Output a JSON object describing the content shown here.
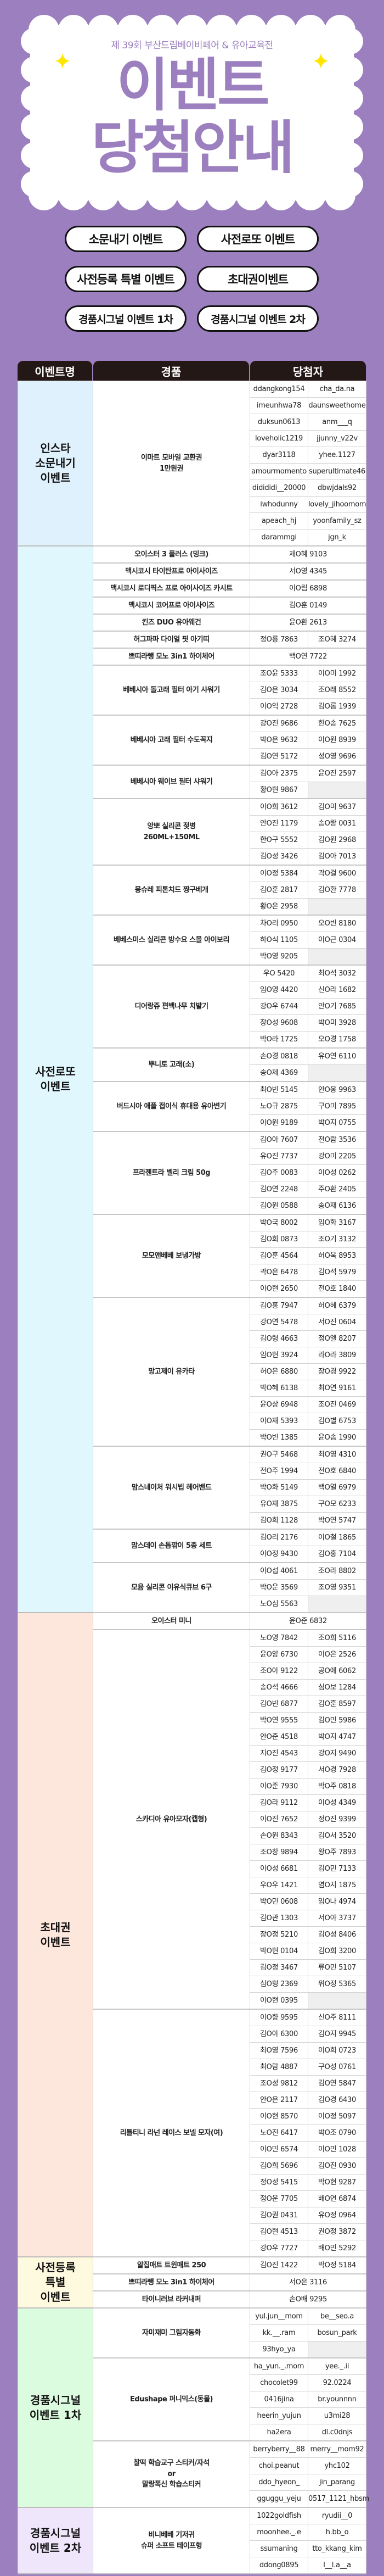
{
  "header": {
    "subtitle": "제 39회 부산드림베이비페어 & 유아교육전",
    "title_line1": "이벤트",
    "title_line2": "당첨안내"
  },
  "nav_buttons": [
    "소문내기 이벤트",
    "사전로또 이벤트",
    "사전등록 특별 이벤트",
    "초대권이벤트",
    "경품시그널 이벤트 1차",
    "경품시그널 이벤트 2차"
  ],
  "colors": {
    "background": "#9b7fbe",
    "table_header": "#231815",
    "accent_sparkle": "#ffe600"
  },
  "table": {
    "columns": [
      "이벤트명",
      "경품",
      "당첨자"
    ],
    "events": [
      {
        "name": "인스타\n소문내기\n이벤트",
        "color": "#dff1fd",
        "prizes": [
          {
            "name": "이마트 모바일 교환권\n1만원권",
            "winners": [
              "ddangkong154",
              "cha_da.na",
              "imeunhwa78",
              "daunsweethome",
              "duksun0613",
              "anm___q",
              "loveholic1219",
              "jjunny_v22v",
              "dyar3118",
              "yhee.1127",
              "amourmomento",
              "superultimate46",
              "didididi__20000",
              "dbwjdals92",
              "iwhodunny",
              "lovely_jihoomom",
              "apeach_hj",
              "yoonfamily_sz",
              "darammgi",
              "jgn_k"
            ]
          }
        ]
      },
      {
        "name": "사전로또\n이벤트",
        "color": "#e0f8fd",
        "prizes": [
          {
            "name": "오이스터 3 플러스 (밍크)",
            "winners": [
              "제O혜 9103"
            ]
          },
          {
            "name": "맥시코시 타이탄프로 아이사이즈",
            "winners": [
              "서O영 4345"
            ]
          },
          {
            "name": "맥시코시 로디픽스 프로 아이사이즈 카시트",
            "winners": [
              "이O림 6898"
            ]
          },
          {
            "name": "맥시코시 코어프로 아이사이즈",
            "winners": [
              "김O훈 0149"
            ]
          },
          {
            "name": "킨즈 DUO 유아웨건",
            "winners": [
              "윤O환 2613"
            ]
          },
          {
            "name": "허그파파 다이얼 핏 아기띠",
            "winners": [
              "정O룡 7863",
              "조O혜 3274"
            ]
          },
          {
            "name": "쁘띠라뺑 모노 3in1 하이체어",
            "winners": [
              "백O연 7722"
            ]
          },
          {
            "name": "베베시아 돌고래 필터 아기 샤워기",
            "winners": [
              "조O윤 5333",
              "이O미 1992",
              "김O은 3034",
              "조O래 8552",
              "이O익 2728",
              "김O롬 1939"
            ]
          },
          {
            "name": "베베시아 고래 필터 수도꼭지",
            "winners": [
              "강O진 9686",
              "한O송 7625",
              "박O은 9632",
              "이O원 8939",
              "김O연 5172",
              "성O영 9696"
            ]
          },
          {
            "name": "베베시아 웨이브 필터 샤워기",
            "winners": [
              "김O아 2375",
              "윤O진 2597",
              "황O현 9867"
            ]
          },
          {
            "name": "앙뽀 실리콘 젖병\n260ML+150ML",
            "winners": [
              "이O희 3612",
              "김O미 9637",
              "안O진 1179",
              "송O랑 0031",
              "한O구 5552",
              "김O원 2968",
              "김O성 3426",
              "김O아 7013"
            ]
          },
          {
            "name": "몽슈레 피톤치드 짱구베개",
            "winners": [
              "이O정 5384",
              "곽O걸 9600",
              "김O훈 2817",
              "김O환 7778",
              "황O은 2958"
            ]
          },
          {
            "name": "베베스미스 실리콘 방수요 스몰 아이보리",
            "winners": [
              "차O리 0950",
              "오O빈 8180",
              "하O식 1105",
              "이O근 0304",
              "박O영 9205"
            ]
          },
          {
            "name": "디어랑쥬 편백나무 치발기",
            "winners": [
              "우O 5420",
              "최O석 3032",
              "임O영 4420",
              "신O라 1682",
              "강O우 6744",
              "안O기 7685",
              "장O성 9608",
              "박O미 3928",
              "박O라 1725",
              "오O경 1758"
            ]
          },
          {
            "name": "뿌니토 고래(소)",
            "winners": [
              "손O경 0818",
              "유O연 6110",
              "송O제 4369"
            ]
          },
          {
            "name": "버드시아 애플 접이식 휴대용 유아변기",
            "winners": [
              "최O빈 5145",
              "안O웅 9963",
              "노O규 2875",
              "구O미 7895",
              "이O원 9189",
              "박O지 0755"
            ]
          },
          {
            "name": "프라젠트라 벨리 크림 50g",
            "winners": [
              "김O아 7607",
              "전O람 3536",
              "유O진 7737",
              "강O미 2205",
              "김O주 0083",
              "이O성 0262",
              "김O연 2248",
              "주O환 2405",
              "김O원 0588",
              "송O재 6136"
            ]
          },
          {
            "name": "모모앤베베 보냉가방",
            "winners": [
              "박O국 8002",
              "임O화 3167",
              "김O희 0873",
              "조O기 3132",
              "김O훈 4564",
              "허O욱 8953",
              "곽O은 6478",
              "김O석 5979",
              "이O현 2650",
              "전O호 1840"
            ]
          },
          {
            "name": "망고제이 유카타",
            "winners": [
              "김O홍 7947",
              "허O혜 6379",
              "강O연 5478",
              "서O진 0604",
              "김O령 4663",
              "정O엘 8207",
              "임O현 3924",
              "라O라 3809",
              "허O은 6880",
              "장O경 9922",
              "박O혜 6138",
              "최O연 9161",
              "윤O상 6948",
              "조O진 0469",
              "이O재 5393",
              "김O별 6753",
              "박O빈 1385",
              "윤O솜 1990"
            ]
          },
          {
            "name": "맘스네이처 워시빕 헤어밴드",
            "winners": [
              "권O구 5468",
              "최O영 4310",
              "전O주 1994",
              "전O호 6840",
              "박O화 5149",
              "백O열 6979",
              "유O재 3875",
              "구O모 6233",
              "김O희 1128",
              "박O연 5747"
            ]
          },
          {
            "name": "맘스데이 손톱깎이 5종 세트",
            "winners": [
              "김O리 2176",
              "이O철 1865",
              "이O정 9430",
              "김O홍 7104"
            ]
          },
          {
            "name": "모윰 실리콘 이유식큐브 6구",
            "winners": [
              "이O섭 4061",
              "조O라 8802",
              "박O운 3569",
              "조O영 9351",
              "노O심 5563"
            ]
          }
        ]
      },
      {
        "name": "초대권\n이벤트",
        "color": "#fde6dc",
        "prizes": [
          {
            "name": "오이스터 미니",
            "winners": [
              "윤O준 6832"
            ]
          },
          {
            "name": "스카디아 유아모자(캡형)",
            "winners": [
              "노O영 7842",
              "조O희 5116",
              "윤O양 6730",
              "이O은 2526",
              "조O아 9122",
              "공O애 6062",
              "송O석 4666",
              "심O보 1284",
              "김O빈 6877",
              "김O훈 8597",
              "박O연 9555",
              "김O민 5986",
              "안O준 4518",
              "박O지 4747",
              "지O진 4543",
              "강O지 9490",
              "김O정 9177",
              "서O경 7928",
              "이O준 7930",
              "박O주 0818",
              "김O라 9112",
              "이O성 4349",
              "이O진 7652",
              "정O진 9399",
              "손O원 8343",
              "김O서 3520",
              "조O창 9894",
              "왕O주 7893",
              "이O성 6681",
              "김O민 7133",
              "우O우 1421",
              "염O지 1875",
              "박O민 0608",
              "임O나 4974",
              "김O관 1303",
              "서O아 3737",
              "장O정 5210",
              "김O성 8406",
              "박O현 0104",
              "김O희 3200",
              "김O정 3467",
              "류O민 5107",
              "심O형 2369",
              "위O정 5365",
              "이O현 0395"
            ]
          },
          {
            "name": "리틀티니 라넌 레이스 보넬 모자(여)",
            "winners": [
              "이O향 9595",
              "신O주 8111",
              "김O아 6300",
              "김O지 9945",
              "최O영 7596",
              "이O희 0723",
              "최O람 4887",
              "구O성 0761",
              "조O성 9812",
              "김O연 5847",
              "안O은 2117",
              "김O경 6430",
              "이O현 8570",
              "이O정 5097",
              "노O진 6417",
              "박O조 0790",
              "이O민 6574",
              "이O민 1028",
              "김O희 5696",
              "김O진 0930",
              "정O성 5415",
              "박O현 9287",
              "정O운 7705",
              "배O연 6874",
              "김O권 0431",
              "유O정 0964",
              "김O현 4513",
              "권O정 3872",
              "강O우 7727",
              "배O민 5292"
            ]
          }
        ]
      },
      {
        "name": "사전등록\n특별\n이벤트",
        "color": "#fefadf",
        "prizes": [
          {
            "name": "알집매트 트윈매트 250",
            "winners": [
              "김O진 1422",
              "박O정 5184"
            ]
          },
          {
            "name": "쁘띠라뺑 모노 3in1 하이체어",
            "winners": [
              "서O은 3116"
            ]
          },
          {
            "name": "타이니러브 라커내퍼",
            "winners": [
              "손O배 9295"
            ]
          }
        ]
      },
      {
        "name": "경품시그널\n이벤트 1차",
        "color": "#dcfcdf",
        "prizes": [
          {
            "name": "자미재미 그림자동화",
            "winners": [
              "yul.jun__mom",
              "be__seo.a",
              "kk.__.ram",
              "bosun_park",
              "93hyo_ya"
            ]
          },
          {
            "name": "Edushape 퍼니믹스(동물)",
            "winners": [
              "ha_yun._.mom",
              "yee._.ii",
              "chocolet99",
              "92.0224",
              "0416jina",
              "br.younnnn",
              "heerin_yujun",
              "u3mi28",
              "ha2era",
              "dl.c0dnjs"
            ]
          },
          {
            "name": "찰떡 학습교구 스티커/자석\nor\n말랑폭신 학습스티커",
            "winners": [
              "berryberry__88",
              "merry__mom92",
              "choi.peanut",
              "yhc102",
              "ddo_hyeon_",
              "jin_parang",
              "gguggu_yeju",
              "0517_1121_hbsm"
            ]
          }
        ]
      },
      {
        "name": "경품시그널\n이벤트 2차",
        "color": "#efe6fc",
        "prizes": [
          {
            "name": "비니베베 기저귀\n슈퍼 소프트 테이프형",
            "winners": [
              "1022goldfish",
              "ryudii__0",
              "moonhee._.e",
              "h.bb_o",
              "ssumaning",
              "tto_kkang_kim",
              "ddong0895",
              "l__l.a__a"
            ]
          }
        ]
      }
    ]
  }
}
